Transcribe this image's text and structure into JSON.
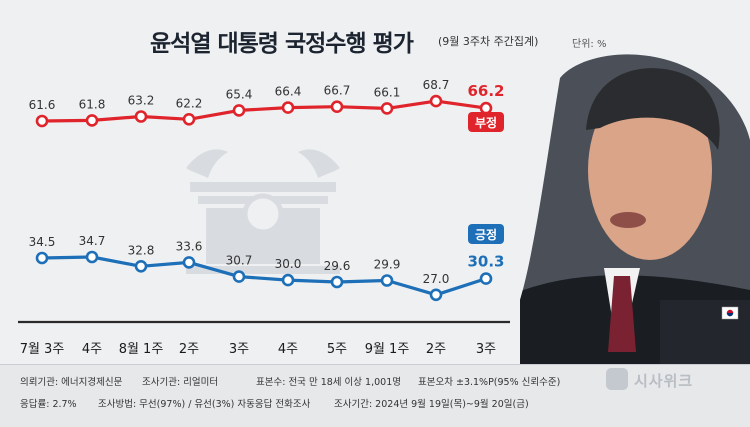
{
  "header": {
    "title": "윤석열 대통령 국정수행 평가",
    "subtitle": "(9월 3주차 주간집계)",
    "unit": "단위: %"
  },
  "colors": {
    "negative": "#e0242c",
    "positive": "#1d6fb8",
    "x_axis": "#2a2a2a"
  },
  "icons": [
    "emblem-watermark-icon",
    "president-photo",
    "korean-flag-pin-icon",
    "sisaweek-logo-icon"
  ],
  "chart_data": {
    "type": "line",
    "categories": [
      "7월 3주",
      "4주",
      "8월 1주",
      "2주",
      "3주",
      "4주",
      "5주",
      "9월 1주",
      "2주",
      "3주"
    ],
    "series": [
      {
        "name": "부정",
        "values": [
          61.6,
          61.8,
          63.2,
          62.2,
          65.4,
          66.4,
          66.7,
          66.1,
          68.7,
          66.2
        ],
        "color": "#e0242c"
      },
      {
        "name": "긍정",
        "values": [
          34.5,
          34.7,
          32.8,
          33.6,
          30.7,
          30.0,
          29.6,
          29.9,
          27.0,
          30.3
        ],
        "color": "#1d6fb8"
      }
    ],
    "labels": {
      "negative": [
        "61.6",
        "61.8",
        "63.2",
        "62.2",
        "65.4",
        "66.4",
        "66.7",
        "66.1",
        "68.7",
        "66.2"
      ],
      "positive": [
        "34.5",
        "34.7",
        "32.8",
        "33.6",
        "30.7",
        "30.0",
        "29.6",
        "29.9",
        "27.0",
        "30.3"
      ]
    },
    "legend": [
      "부정",
      "긍정"
    ],
    "grid": false
  },
  "footer": {
    "line1": [
      "의뢰기관: 에너지경제신문",
      "조사기관: 리얼미터",
      "표본수: 전국 만 18세 이상 1,001명",
      "표본오차 ±3.1%P(95% 신뢰수준)"
    ],
    "line2": [
      "응답률: 2.7%",
      "조사방법: 무선(97%) / 유선(3%) 자동응답 전화조사",
      "조사기간: 2024년 9월 19일(목)~9월 20일(금)"
    ],
    "brand": "시사위크"
  }
}
